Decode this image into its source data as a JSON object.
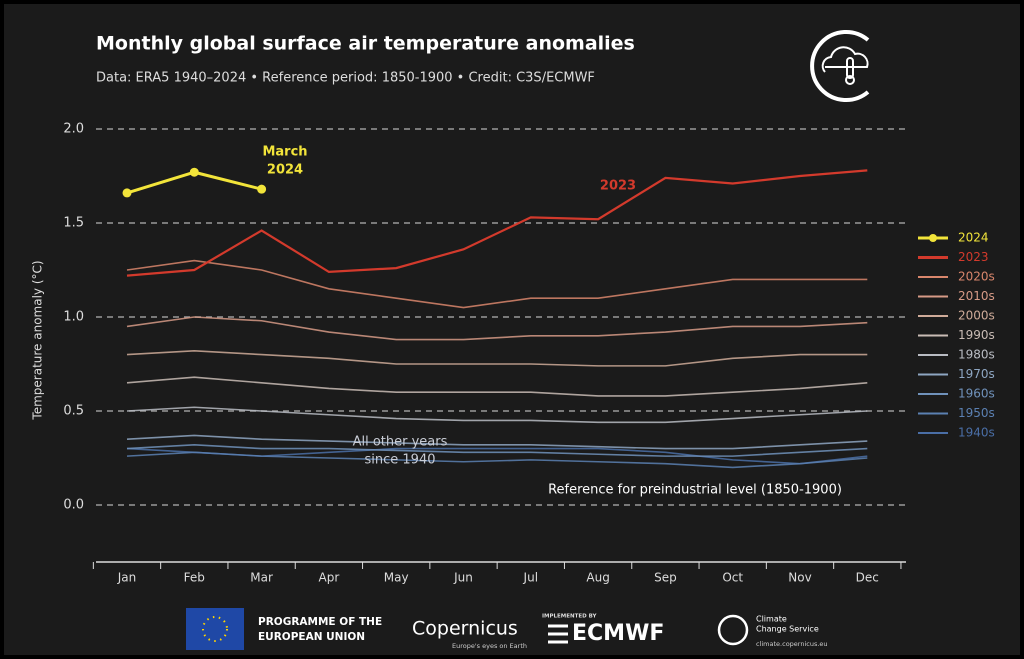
{
  "chart_data": {
    "type": "line",
    "title": "Monthly global surface air temperature anomalies",
    "subtitle": "Data: ERA5 1940–2024 • Reference period: 1850-1900 • Credit: C3S/ECMWF",
    "y_label": "Temperature anomaly (°C)",
    "categories": [
      "Jan",
      "Feb",
      "Mar",
      "Apr",
      "May",
      "Jun",
      "Jul",
      "Aug",
      "Sep",
      "Oct",
      "Nov",
      "Dec"
    ],
    "ylim": [
      -0.3,
      2.05
    ],
    "yticks": [
      {
        "value": 0,
        "label": "0.0"
      },
      {
        "value": 0.5,
        "label": "0.5"
      },
      {
        "value": 1,
        "label": "1.0"
      },
      {
        "value": 1.5,
        "label": "1.5"
      },
      {
        "value": 2,
        "label": "2.0"
      }
    ],
    "grid": true,
    "legend": "right",
    "series": [
      {
        "name": "2024",
        "color": "#f2e43a",
        "values": [
          1.66,
          1.77,
          1.68,
          null,
          null,
          null,
          null,
          null,
          null,
          null,
          null,
          null
        ]
      },
      {
        "name": "2023",
        "color": "#d33a2c",
        "values": [
          1.22,
          1.25,
          1.46,
          1.24,
          1.26,
          1.36,
          1.53,
          1.52,
          1.74,
          1.71,
          1.75,
          1.78
        ]
      },
      {
        "name": "2020s",
        "color": "#d9866c",
        "values": [
          1.25,
          1.3,
          1.25,
          1.15,
          1.1,
          1.05,
          1.1,
          1.1,
          1.15,
          1.2,
          1.2,
          1.2
        ]
      },
      {
        "name": "2010s",
        "color": "#d69a86",
        "values": [
          0.95,
          1.0,
          0.98,
          0.92,
          0.88,
          0.88,
          0.9,
          0.9,
          0.92,
          0.95,
          0.95,
          0.97
        ]
      },
      {
        "name": "2000s",
        "color": "#cfab99",
        "values": [
          0.8,
          0.82,
          0.8,
          0.78,
          0.75,
          0.75,
          0.75,
          0.74,
          0.74,
          0.78,
          0.8,
          0.8
        ]
      },
      {
        "name": "1990s",
        "color": "#c9bcb5",
        "values": [
          0.65,
          0.68,
          0.65,
          0.62,
          0.6,
          0.6,
          0.6,
          0.58,
          0.58,
          0.6,
          0.62,
          0.65
        ]
      },
      {
        "name": "1980s",
        "color": "#b9bcc3",
        "values": [
          0.5,
          0.52,
          0.5,
          0.48,
          0.46,
          0.45,
          0.45,
          0.44,
          0.44,
          0.46,
          0.48,
          0.5
        ]
      },
      {
        "name": "1970s",
        "color": "#8ea6c2",
        "values": [
          0.35,
          0.37,
          0.35,
          0.34,
          0.33,
          0.32,
          0.32,
          0.31,
          0.3,
          0.3,
          0.32,
          0.34
        ]
      },
      {
        "name": "1960s",
        "color": "#7092bb",
        "values": [
          0.3,
          0.32,
          0.3,
          0.3,
          0.29,
          0.28,
          0.28,
          0.27,
          0.26,
          0.26,
          0.28,
          0.3
        ]
      },
      {
        "name": "1950s",
        "color": "#5b80b2",
        "values": [
          0.26,
          0.28,
          0.26,
          0.25,
          0.24,
          0.23,
          0.24,
          0.23,
          0.22,
          0.2,
          0.22,
          0.25
        ]
      },
      {
        "name": "1940s",
        "color": "#4a6ea6",
        "values": [
          0.3,
          0.28,
          0.26,
          0.28,
          0.3,
          0.3,
          0.3,
          0.3,
          0.28,
          0.24,
          0.22,
          0.26
        ]
      }
    ],
    "annotations": [
      {
        "lines": [
          "March",
          "2024"
        ],
        "color": "#f2e43a"
      },
      {
        "lines": [
          "2023"
        ],
        "color": "#d33a2c"
      },
      {
        "lines": [
          "All other years",
          "since 1940"
        ],
        "color": "#c9cdd6"
      },
      {
        "lines": [
          "Reference for preindustrial level (1850-1900)"
        ],
        "color": "#ffffff"
      }
    ]
  },
  "footer": {
    "eu": [
      "PROGRAMME OF THE",
      "EUROPEAN UNION"
    ],
    "copernicus": "Copernicus",
    "copernicus_tagline": "Europe's eyes on Earth",
    "implemented": "IMPLEMENTED BY",
    "ecmwf": "ECMWF",
    "c3s": [
      "Climate",
      "Change Service"
    ],
    "c3s_url": "climate.copernicus.eu"
  }
}
